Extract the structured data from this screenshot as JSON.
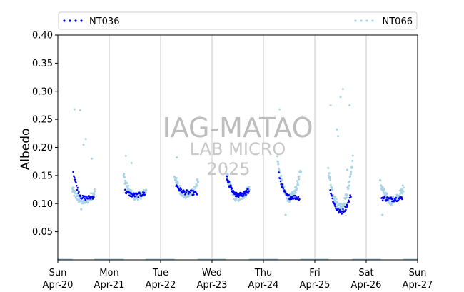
{
  "chart_data": {
    "type": "scatter",
    "title": "",
    "ylabel": "Albedo",
    "xlabel": "",
    "ylim": [
      0.0,
      0.4
    ],
    "yticks": [
      0.05,
      0.1,
      0.15,
      0.2,
      0.25,
      0.3,
      0.35,
      0.4
    ],
    "ytick_labels": [
      "0.05",
      "0.10",
      "0.15",
      "0.20",
      "0.25",
      "0.30",
      "0.35",
      "0.40"
    ],
    "xlim_days": [
      0,
      7
    ],
    "xticks": [
      {
        "day": "Sun",
        "date": "Apr-20"
      },
      {
        "day": "Mon",
        "date": "Apr-21"
      },
      {
        "day": "Tue",
        "date": "Apr-22"
      },
      {
        "day": "Wed",
        "date": "Apr-23"
      },
      {
        "day": "Thu",
        "date": "Apr-24"
      },
      {
        "day": "Fri",
        "date": "Apr-25"
      },
      {
        "day": "Sat",
        "date": "Apr-26"
      },
      {
        "day": "Sun",
        "date": "Apr-27"
      }
    ],
    "grid": "vertical",
    "legend_placement": "top",
    "watermark": {
      "line1": "IAG-MATAO",
      "line2": "LAB MICRO",
      "line3": "2025"
    },
    "series": [
      {
        "name": "NT036",
        "color": "#0000ee",
        "days": [
          {
            "start": 0.3,
            "end": 0.7,
            "start_value": 0.157,
            "min_value": 0.11,
            "end_value": 0.113
          },
          {
            "start": 1.31,
            "end": 1.69,
            "start_value": 0.122,
            "min_value": 0.115,
            "end_value": 0.118
          },
          {
            "start": 2.3,
            "end": 2.71,
            "start_value": 0.133,
            "min_value": 0.12,
            "end_value": 0.118
          },
          {
            "start": 3.28,
            "end": 3.72,
            "start_value": 0.145,
            "min_value": 0.115,
            "end_value": 0.122
          },
          {
            "start": 3.3,
            "end": 3.7,
            "start_value": 0.145,
            "min_value": 0.115,
            "end_value": 0.125
          },
          {
            "start": 4.3,
            "end": 4.7,
            "start_value": 0.152,
            "min_value": 0.112,
            "end_value": 0.11
          },
          {
            "start": 5.3,
            "end": 5.7,
            "start_value": 0.124,
            "min_value": 0.085,
            "end_value": 0.115
          },
          {
            "start": 6.3,
            "end": 6.7,
            "start_value": 0.11,
            "min_value": 0.108,
            "end_value": 0.11
          }
        ]
      },
      {
        "name": "NT066",
        "color": "#a9d4e6",
        "days": [
          {
            "start": 0.28,
            "end": 0.72,
            "start_value": 0.125,
            "min_value": 0.105,
            "end_value": 0.122,
            "outliers": [
              0.268,
              0.266,
              0.215,
              0.205,
              0.18,
              0.09
            ]
          },
          {
            "start": 1.28,
            "end": 1.72,
            "start_value": 0.15,
            "min_value": 0.113,
            "end_value": 0.122,
            "outliers": [
              0.185,
              0.172
            ]
          },
          {
            "start": 2.27,
            "end": 2.73,
            "start_value": 0.15,
            "min_value": 0.115,
            "end_value": 0.14,
            "outliers": [
              0.182
            ]
          },
          {
            "start": 3.27,
            "end": 3.73,
            "start_value": 0.16,
            "min_value": 0.11,
            "end_value": 0.13
          },
          {
            "start": 4.27,
            "end": 4.73,
            "start_value": 0.18,
            "min_value": 0.11,
            "end_value": 0.16,
            "outliers": [
              0.268,
              0.08
            ]
          },
          {
            "start": 5.26,
            "end": 5.74,
            "start_value": 0.16,
            "min_value": 0.095,
            "end_value": 0.18,
            "outliers": [
              0.275,
              0.232,
              0.304,
              0.29,
              0.275,
              0.22,
              0.16
            ]
          },
          {
            "start": 6.27,
            "end": 6.73,
            "start_value": 0.138,
            "min_value": 0.105,
            "end_value": 0.13,
            "outliers": [
              0.08
            ]
          }
        ],
        "night_value": 0.0
      }
    ]
  }
}
